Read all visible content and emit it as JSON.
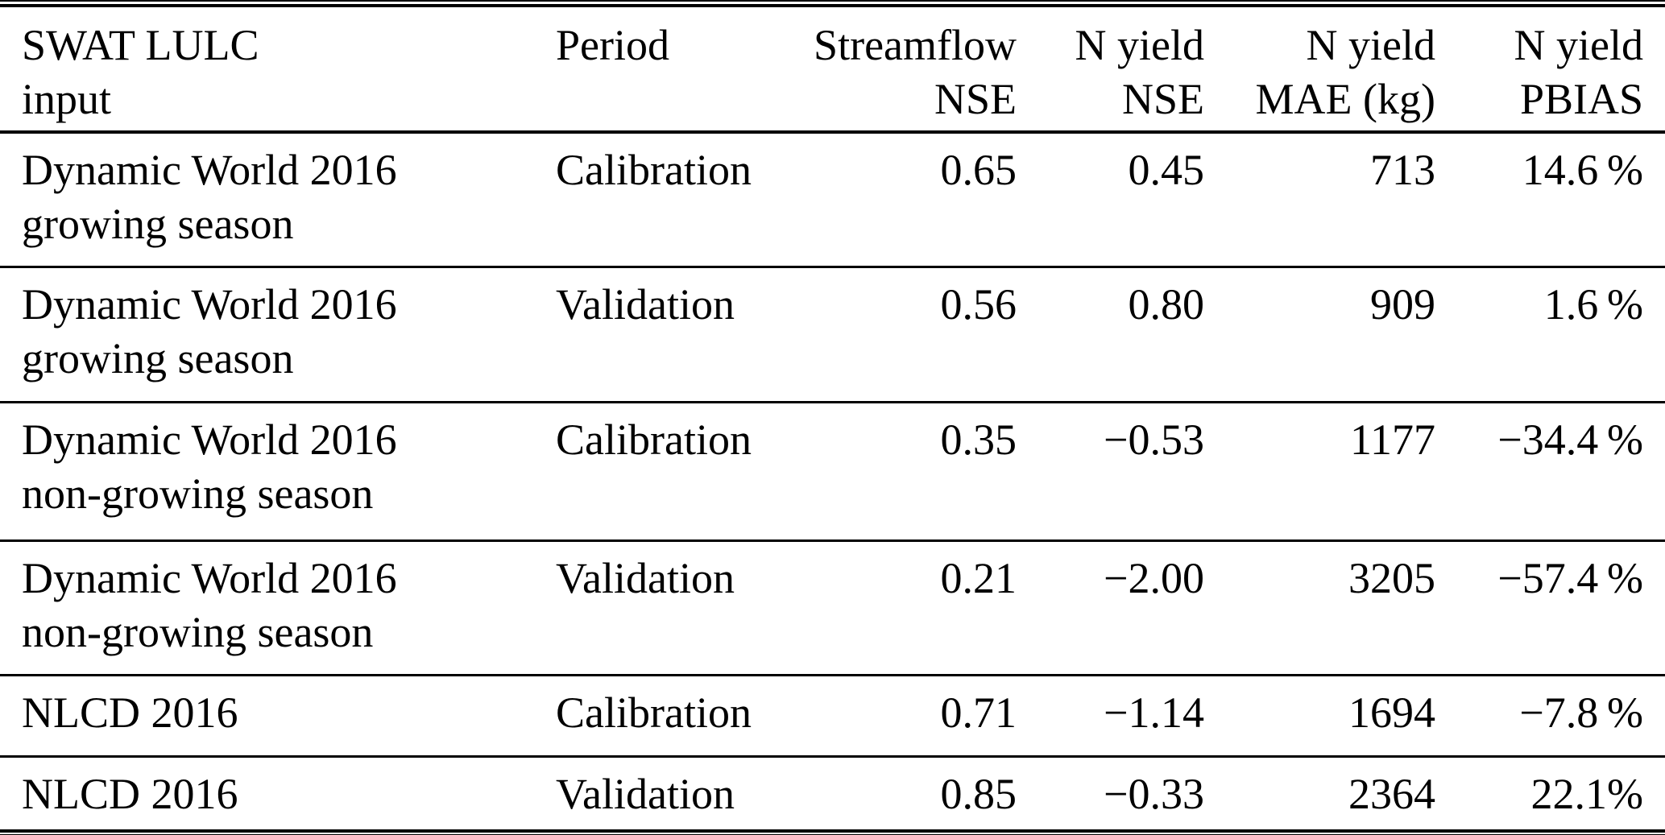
{
  "table": {
    "header": {
      "col1_line1": "SWAT LULC",
      "col1_line2": "input",
      "col2_line1": "Period",
      "col2_line2": "",
      "col3_line1": "Streamflow",
      "col3_line2": "NSE",
      "col4_line1": "N yield",
      "col4_line2": "NSE",
      "col5_line1": "N yield",
      "col5_line2": "MAE (kg)",
      "col6_line1": "N yield",
      "col6_line2": "PBIAS"
    },
    "rows": [
      {
        "input_line1": "Dynamic World 2016",
        "input_line2": "growing season",
        "period": "Calibration",
        "streamflow_nse": "0.65",
        "n_yield_nse": "0.45",
        "n_yield_mae_kg": "713",
        "n_yield_pbias": "14.6 %"
      },
      {
        "input_line1": "Dynamic World 2016",
        "input_line2": "growing season",
        "period": "Validation",
        "streamflow_nse": "0.56",
        "n_yield_nse": "0.80",
        "n_yield_mae_kg": "909",
        "n_yield_pbias": "1.6 %"
      },
      {
        "input_line1": "Dynamic World 2016",
        "input_line2": "non-growing season",
        "period": "Calibration",
        "streamflow_nse": "0.35",
        "n_yield_nse": "−0.53",
        "n_yield_mae_kg": "1177",
        "n_yield_pbias": "−34.4 %"
      },
      {
        "input_line1": "Dynamic World 2016",
        "input_line2": "non-growing season",
        "period": "Validation",
        "streamflow_nse": "0.21",
        "n_yield_nse": "−2.00",
        "n_yield_mae_kg": "3205",
        "n_yield_pbias": "−57.4 %"
      },
      {
        "input_line1": "NLCD 2016",
        "input_line2": "",
        "period": "Calibration",
        "streamflow_nse": "0.71",
        "n_yield_nse": "−1.14",
        "n_yield_mae_kg": "1694",
        "n_yield_pbias": "−7.8 %"
      },
      {
        "input_line1": "NLCD 2016",
        "input_line2": "",
        "period": "Validation",
        "streamflow_nse": "0.85",
        "n_yield_nse": "−0.33",
        "n_yield_mae_kg": "2364",
        "n_yield_pbias": "22.1%"
      }
    ]
  },
  "colors": {
    "text": "#000000",
    "background": "#ffffff",
    "rule": "#000000"
  }
}
